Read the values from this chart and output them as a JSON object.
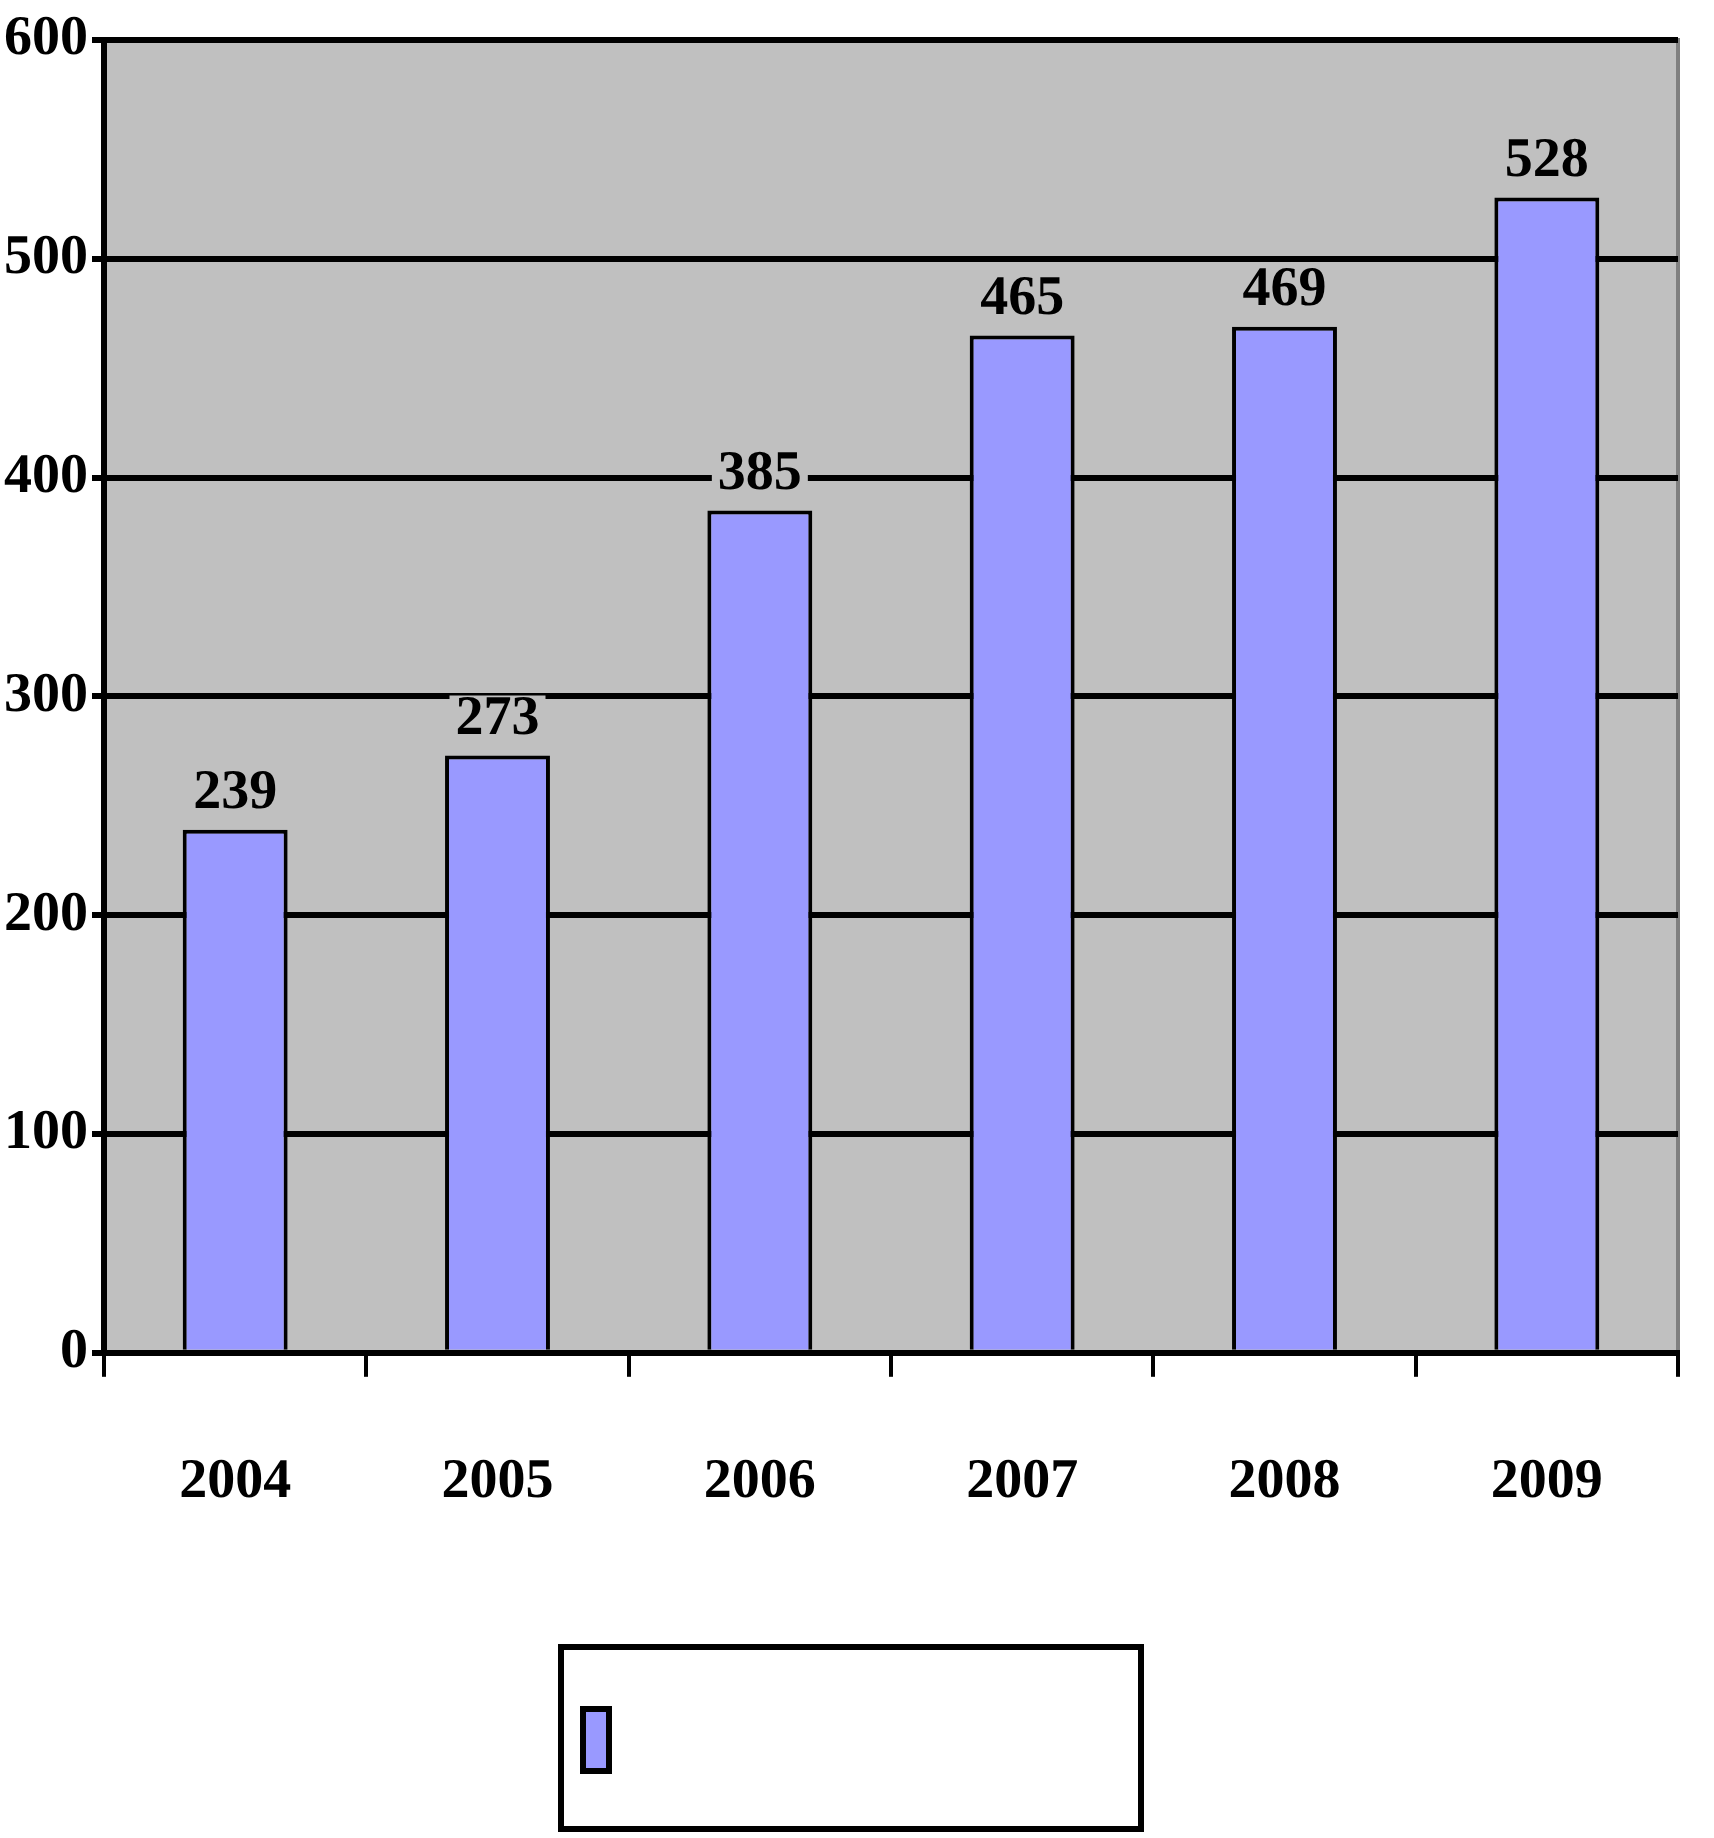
{
  "chart_data": {
    "type": "bar",
    "categories": [
      "2004",
      "2005",
      "2006",
      "2007",
      "2008",
      "2009"
    ],
    "values": [
      239,
      273,
      385,
      465,
      469,
      528
    ],
    "color": "#9999ff",
    "ylim": [
      0,
      600
    ],
    "yticks": [
      0,
      100,
      200,
      300,
      400,
      500,
      600
    ],
    "grid": "y",
    "data_labels": true
  }
}
